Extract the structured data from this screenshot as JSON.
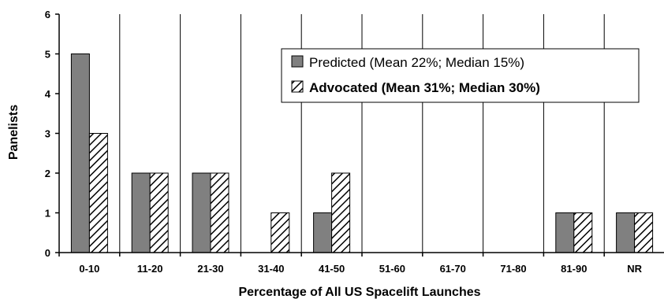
{
  "chart_data": {
    "type": "bar",
    "xlabel": "Percentage of All US Spacelift Launches",
    "ylabel": "Panelists",
    "ylim": [
      0,
      6
    ],
    "yticks": [
      0,
      1,
      2,
      3,
      4,
      5,
      6
    ],
    "categories": [
      "0-10",
      "11-20",
      "21-30",
      "31-40",
      "41-50",
      "51-60",
      "61-70",
      "71-80",
      "81-90",
      "NR"
    ],
    "series": [
      {
        "name": "Predicted (Mean 22%; Median 15%)",
        "values": [
          5,
          2,
          2,
          0,
          1,
          0,
          0,
          0,
          1,
          1
        ],
        "color": "#808080",
        "pattern": "solid"
      },
      {
        "name": "Advocated (Mean 31%; Median 30%)",
        "values": [
          3,
          2,
          2,
          1,
          2,
          0,
          0,
          0,
          1,
          1
        ],
        "color": "#ffffff",
        "pattern": "diagonal-hatch"
      }
    ],
    "grid": "vertical category separators",
    "legend": "top-right"
  }
}
